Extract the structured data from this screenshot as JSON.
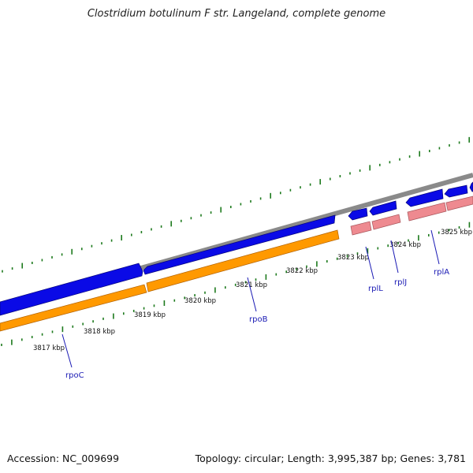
{
  "title": "Clostridium botulinum F str. Langeland, complete genome",
  "footer": {
    "accession": "Accession: NC_009699",
    "topology": "Topology: circular; Length: 3,995,387 bp; Genes: 3,781"
  },
  "colors": {
    "background": "#ffffff",
    "backbone": "#8a8a8a",
    "cds": "#0a0ae6",
    "rrna_gene": "#ff9900",
    "protein_gene": "#ee8a90",
    "gc_ticks": "#1d7a1d",
    "gene_label": "#1a1ab4",
    "kbp_label": "#111111"
  },
  "scale_labels": [
    {
      "text": "3817 kbp",
      "bp": 3817
    },
    {
      "text": "3818 kbp",
      "bp": 3818
    },
    {
      "text": "3819 kbp",
      "bp": 3819
    },
    {
      "text": "3820 kbp",
      "bp": 3820
    },
    {
      "text": "3821 kbp",
      "bp": 3821
    },
    {
      "text": "3822 kbp",
      "bp": 3822
    },
    {
      "text": "3823 kbp",
      "bp": 3823
    },
    {
      "text": "3824 kbp",
      "bp": 3824
    },
    {
      "text": "3825 kbp",
      "bp": 3825
    }
  ],
  "genes": [
    {
      "name": "rpoC"
    },
    {
      "name": "rpoB"
    },
    {
      "name": "rplL"
    },
    {
      "name": "rplJ"
    },
    {
      "name": "rplA"
    }
  ]
}
